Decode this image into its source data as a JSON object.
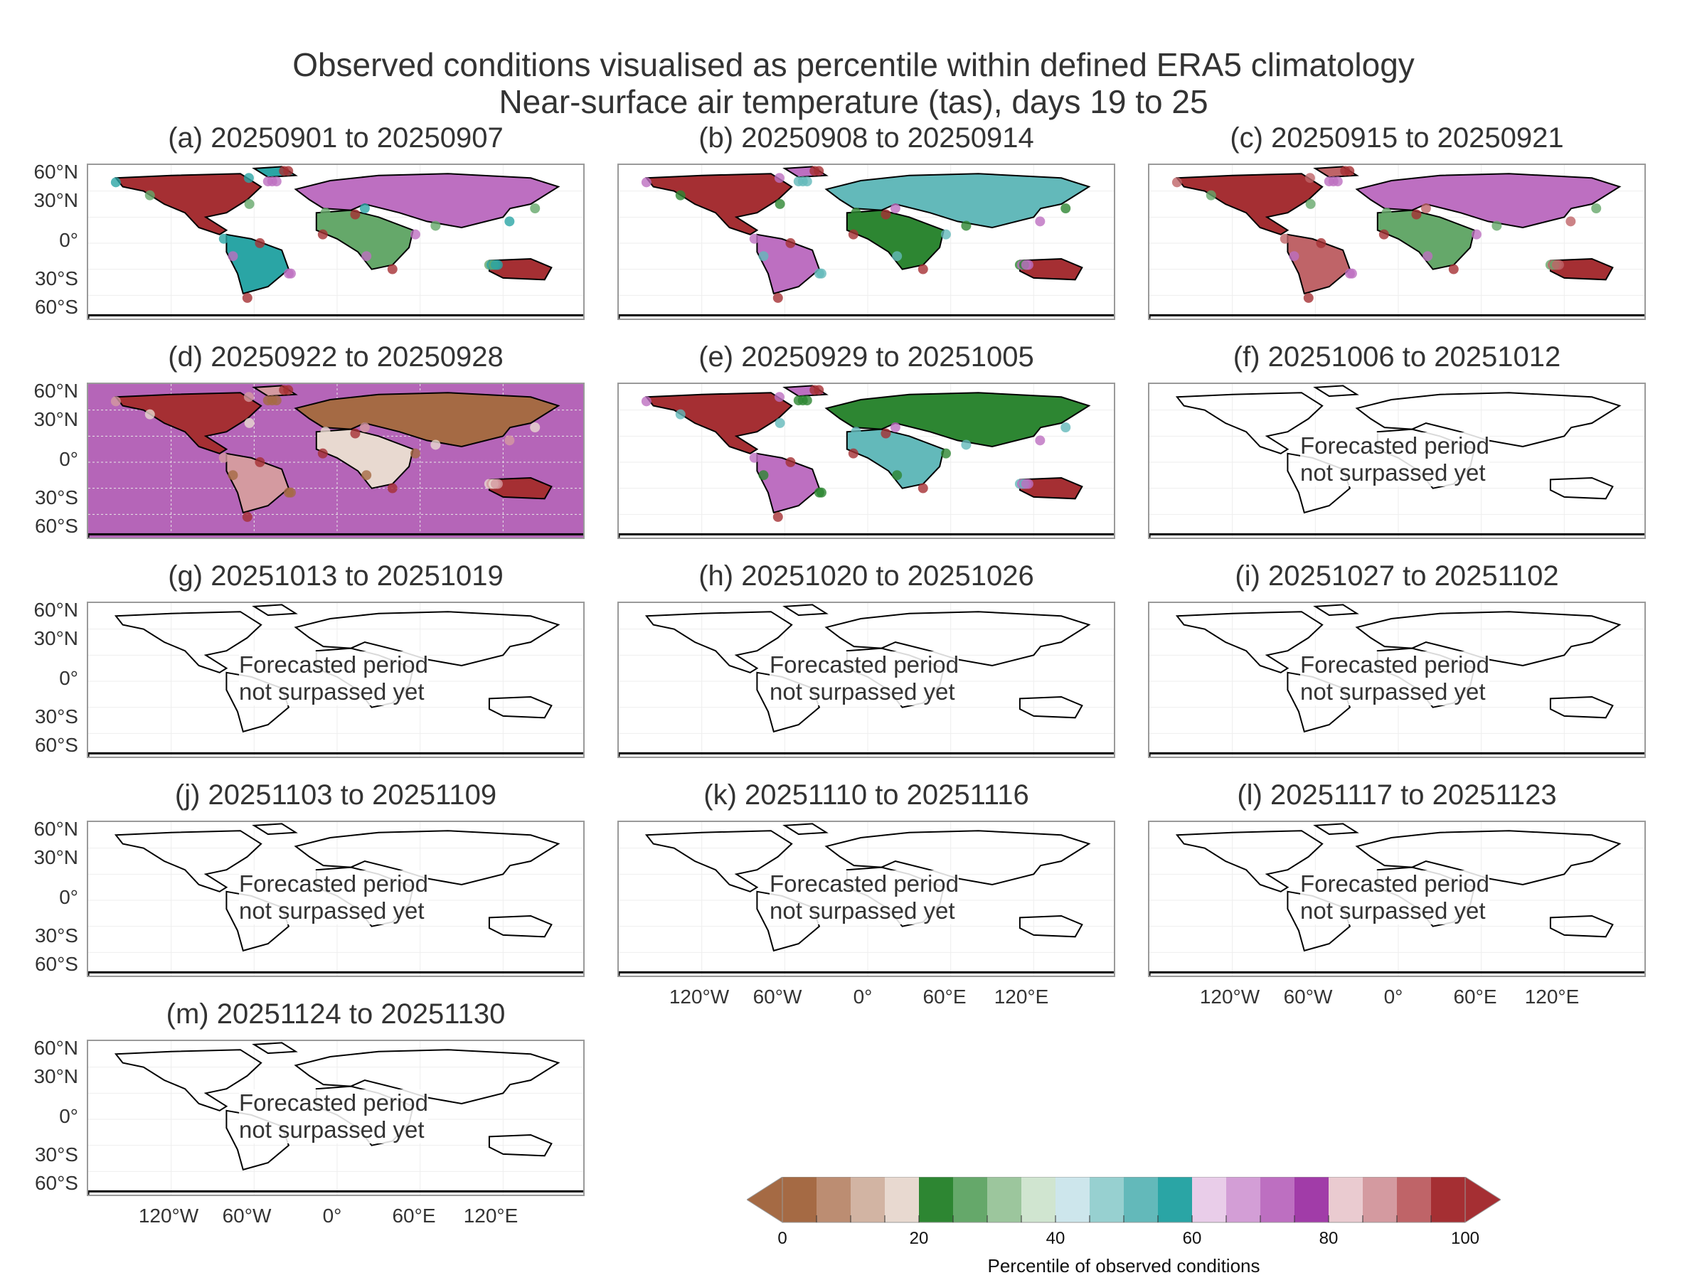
{
  "figure": {
    "title_line1": "Observed conditions visualised as percentile within defined ERA5 climatology",
    "title_line2": "Near-surface air temperature (tas), days 19 to 25"
  },
  "chart_data": {
    "type": "heatmap",
    "variable": "Near-surface air temperature (tas)",
    "lead_time": "days 19 to 25",
    "lat_ticks": [
      "60°N",
      "30°N",
      "0°",
      "30°S",
      "60°S"
    ],
    "lon_ticks": [
      "120°W",
      "60°W",
      "0°",
      "60°E",
      "120°E"
    ],
    "panels": [
      {
        "label": "(a) 20250901 to 20250907",
        "status": "observed"
      },
      {
        "label": "(b) 20250908 to 20250914",
        "status": "observed"
      },
      {
        "label": "(c) 20250915 to 20250921",
        "status": "observed"
      },
      {
        "label": "(d) 20250922 to 20250928",
        "status": "observed"
      },
      {
        "label": "(e) 20250929 to 20251005",
        "status": "observed"
      },
      {
        "label": "(f) 20251006 to 20251012",
        "status": "forecast"
      },
      {
        "label": "(g) 20251013 to 20251019",
        "status": "forecast"
      },
      {
        "label": "(h) 20251020 to 20251026",
        "status": "forecast"
      },
      {
        "label": "(i) 20251027 to 20251102",
        "status": "forecast"
      },
      {
        "label": "(j) 20251103 to 20251109",
        "status": "forecast"
      },
      {
        "label": "(k) 20251110 to 20251116",
        "status": "forecast"
      },
      {
        "label": "(l) 20251117 to 20251123",
        "status": "forecast"
      },
      {
        "label": "(m) 20251124 to 20251130",
        "status": "forecast"
      }
    ],
    "forecast_note_line1": "Forecasted period",
    "forecast_note_line2": "not surpassed yet",
    "colorbar": {
      "label": "Percentile of observed conditions",
      "ticks": [
        "0",
        "20",
        "40",
        "60",
        "80",
        "100"
      ],
      "range": [
        0,
        100
      ],
      "colors": [
        "#a56a44",
        "#bc8d72",
        "#d2b4a3",
        "#e8d9d0",
        "#2d8632",
        "#65a86a",
        "#9cc69d",
        "#d0e5d0",
        "#cde6ec",
        "#97d0d0",
        "#63b9ba",
        "#2aa5a5",
        "#e9cde9",
        "#d39ed6",
        "#bd6fc1",
        "#a13ca8",
        "#eacbd0",
        "#d49aa0",
        "#bf6468",
        "#a52f33"
      ],
      "extend_low_color": "#a56a44",
      "extend_high_color": "#a52f33"
    }
  }
}
